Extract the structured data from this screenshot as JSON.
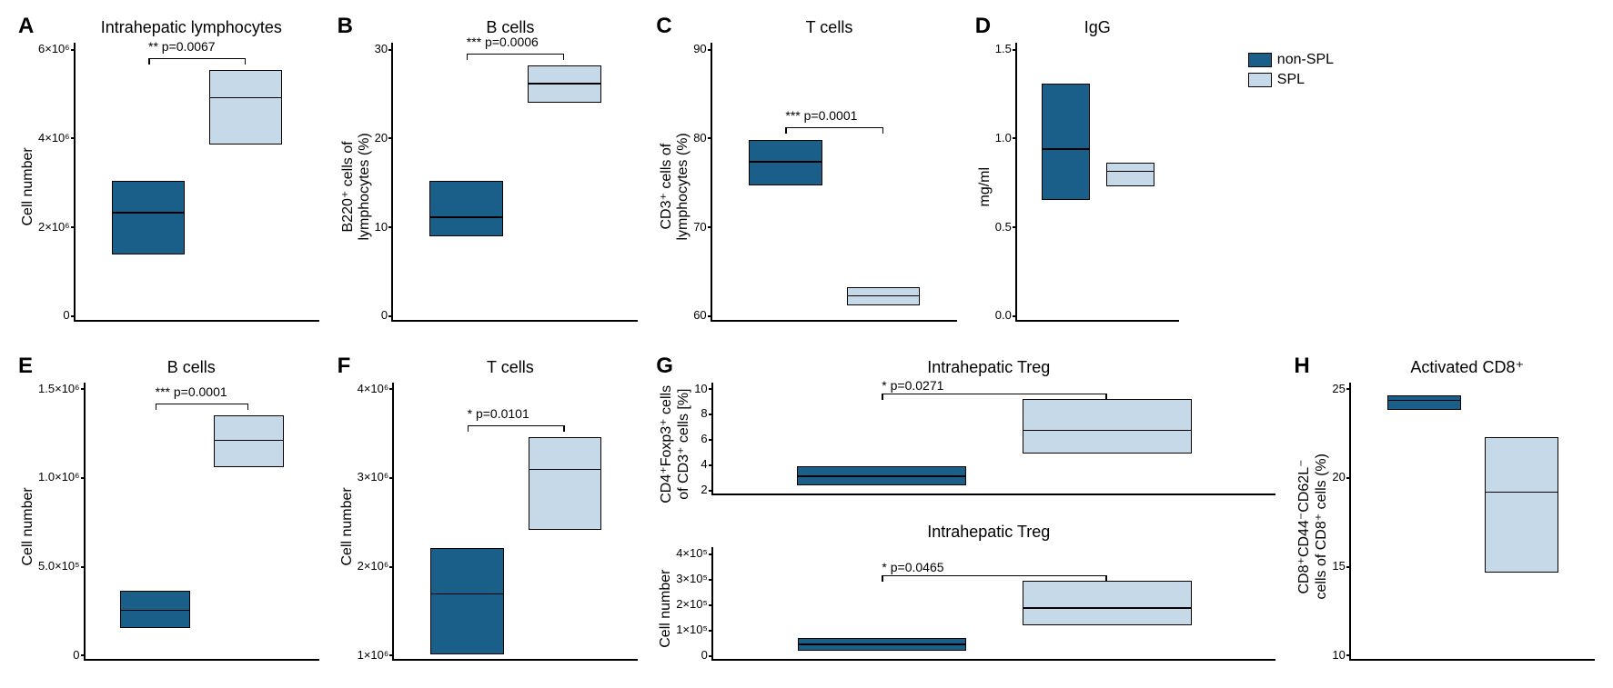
{
  "colors": {
    "non_spl": "#1a5e8a",
    "spl": "#c5d9e8",
    "axis": "#000000",
    "bg": "#ffffff"
  },
  "legend": {
    "non_spl": "non-SPL",
    "spl": "SPL"
  },
  "panels": {
    "A": {
      "letter": "A",
      "title": "Intrahepatic lymphocytes",
      "ylabel": "Cell number",
      "yticks": [
        "6×10⁶",
        "4×10⁶",
        "2×10⁶",
        "0"
      ],
      "ylim": [
        0,
        6000000.0
      ],
      "sig": "**  p=0.0067",
      "boxes": {
        "non_spl": {
          "min": 1400000.0,
          "median": 2300000.0,
          "max": 3000000.0
        },
        "spl": {
          "min": 3800000.0,
          "median": 4800000.0,
          "max": 5400000.0
        }
      }
    },
    "B": {
      "letter": "B",
      "title": "B cells",
      "ylabel": "B220⁺ cells of\nlymphocytes (%)",
      "yticks": [
        "30",
        "20",
        "10",
        "0"
      ],
      "ylim": [
        0,
        30
      ],
      "sig": "*** p=0.0006",
      "boxes": {
        "non_spl": {
          "min": 9,
          "median": 11,
          "max": 15
        },
        "spl": {
          "min": 23.5,
          "median": 25.5,
          "max": 27.5
        }
      }
    },
    "C": {
      "letter": "C",
      "title": "T cells",
      "ylabel": "CD3⁺ cells of\nlymphocytes (%)",
      "yticks": [
        "90",
        "80",
        "70",
        "60"
      ],
      "ylim": [
        60,
        90
      ],
      "sig": "*** p=0.0001",
      "boxes": {
        "non_spl": {
          "min": 74.5,
          "median": 77,
          "max": 79.5
        },
        "spl": {
          "min": 61.5,
          "median": 62.5,
          "max": 63.5
        }
      }
    },
    "D": {
      "letter": "D",
      "title": "IgG",
      "ylabel": "mg/ml",
      "yticks": [
        "1.5",
        "1.0",
        "0.5",
        "0.0"
      ],
      "ylim": [
        0,
        1.5
      ],
      "sig": "",
      "boxes": {
        "non_spl": {
          "min": 0.65,
          "median": 0.92,
          "max": 1.28
        },
        "spl": {
          "min": 0.72,
          "median": 0.8,
          "max": 0.85
        }
      }
    },
    "E": {
      "letter": "E",
      "title": "B cells",
      "ylabel": "Cell number",
      "yticks": [
        "1.5×10⁶",
        "1.0×10⁶",
        "5.0×10⁵",
        "0"
      ],
      "ylim": [
        0,
        1500000.0
      ],
      "sig": "*** p=0.0001",
      "boxes": {
        "non_spl": {
          "min": 170000.0,
          "median": 260000.0,
          "max": 370000.0
        },
        "spl": {
          "min": 1040000.0,
          "median": 1180000.0,
          "max": 1320000.0
        }
      }
    },
    "F": {
      "letter": "F",
      "title": "T cells",
      "ylabel": "Cell number",
      "yticks": [
        "4×10⁶",
        "3×10⁶",
        "2×10⁶",
        "1×10⁶"
      ],
      "ylim": [
        1000000.0,
        4000000.0
      ],
      "sig": "* p=0.0101",
      "boxes": {
        "non_spl": {
          "min": 1050000.0,
          "median": 1700000.0,
          "max": 2200000.0
        },
        "spl": {
          "min": 2400000.0,
          "median": 3050000.0,
          "max": 3400000.0
        }
      }
    },
    "G1": {
      "letter": "G",
      "title": "Intrahepatic Treg",
      "ylabel": "CD4⁺Foxp3⁺ cells\nof CD3⁺ cells [%]",
      "yticks": [
        "10",
        "8",
        "6",
        "4",
        "2"
      ],
      "ylim": [
        2,
        10
      ],
      "sig": "* p=0.0271",
      "boxes": {
        "non_spl": {
          "min": 2.6,
          "median": 3.2,
          "max": 4.0
        },
        "spl": {
          "min": 4.9,
          "median": 6.5,
          "max": 8.8
        }
      }
    },
    "G2": {
      "letter": "",
      "title": "Intrahepatic Treg",
      "ylabel": "Cell number",
      "yticks": [
        "4×10⁵",
        "3×10⁵",
        "2×10⁵",
        "1×10⁵",
        "0"
      ],
      "ylim": [
        0,
        400000.0
      ],
      "sig": "* p=0.0465",
      "boxes": {
        "non_spl": {
          "min": 30000.0,
          "median": 50000.0,
          "max": 75000.0
        },
        "spl": {
          "min": 120000.0,
          "median": 180000.0,
          "max": 280000.0
        }
      }
    },
    "H": {
      "letter": "H",
      "title": "Activated CD8⁺",
      "ylabel": "CD8⁺CD44⁻CD62L⁻\ncells of CD8⁺ cells (%)",
      "yticks": [
        "25",
        "20",
        "15",
        "10"
      ],
      "ylim": [
        10,
        25
      ],
      "sig": "",
      "boxes": {
        "non_spl": {
          "min": 23.5,
          "median": 24,
          "max": 24.3
        },
        "spl": {
          "min": 14.7,
          "median": 19,
          "max": 22
        }
      }
    }
  },
  "box_layout": {
    "bar_width_pct": 30,
    "non_spl_left_pct": 15,
    "spl_left_pct": 55
  }
}
